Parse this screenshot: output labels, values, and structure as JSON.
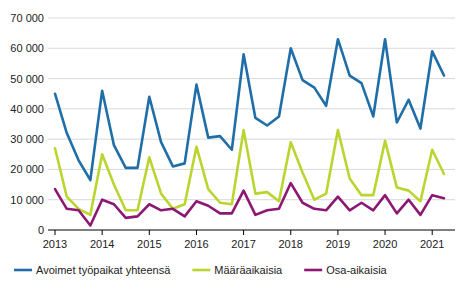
{
  "chart_data": {
    "type": "line",
    "categories": [
      "2013",
      null,
      null,
      null,
      "2014",
      null,
      null,
      null,
      "2015",
      null,
      null,
      null,
      "2016",
      null,
      null,
      null,
      "2017",
      null,
      null,
      null,
      "2018",
      null,
      null,
      null,
      "2019",
      null,
      null,
      null,
      "2020",
      null,
      null,
      null,
      "2021",
      null
    ],
    "series": [
      {
        "name": "Avoimet työpaikat yhteensä",
        "color": "#1f6ea8",
        "values": [
          45000,
          32000,
          23000,
          16500,
          46000,
          28000,
          20500,
          20500,
          44000,
          29000,
          21000,
          22000,
          48000,
          30500,
          31000,
          26500,
          58000,
          37000,
          34500,
          37500,
          60000,
          49500,
          47000,
          41000,
          63000,
          51000,
          48500,
          37500,
          63000,
          35500,
          43000,
          33500,
          59000,
          51000
        ]
      },
      {
        "name": "Määräaikaisia",
        "color": "#bcd42f",
        "values": [
          27000,
          11000,
          7000,
          5000,
          25000,
          15000,
          6500,
          6500,
          24000,
          12000,
          7000,
          8500,
          27500,
          13500,
          9000,
          8500,
          33000,
          12000,
          12500,
          9500,
          29000,
          19000,
          10000,
          12000,
          33000,
          17000,
          11500,
          11500,
          29500,
          14000,
          13000,
          9500,
          26500,
          18500
        ]
      },
      {
        "name": "Osa-aikaisia",
        "color": "#8c1873",
        "values": [
          13500,
          7000,
          6500,
          1500,
          10000,
          8500,
          4000,
          4500,
          8500,
          6500,
          7000,
          4500,
          9500,
          8000,
          5500,
          5500,
          13000,
          5000,
          6500,
          7000,
          15500,
          9000,
          7000,
          6500,
          11000,
          6500,
          9000,
          6500,
          11500,
          5500,
          10000,
          5000,
          11500,
          10500
        ]
      }
    ],
    "ylim": [
      0,
      70000
    ],
    "yticks": [
      0,
      {
        "value": 10000,
        "label": "10 000"
      },
      {
        "value": 20000,
        "label": "20 000"
      },
      {
        "value": 30000,
        "label": "30 000"
      },
      {
        "value": 40000,
        "label": "40 000"
      },
      {
        "value": 50000,
        "label": "50 000"
      },
      {
        "value": 60000,
        "label": "60 000"
      },
      {
        "value": 70000,
        "label": "70 000"
      }
    ],
    "grid": true,
    "legend": "bottom"
  }
}
